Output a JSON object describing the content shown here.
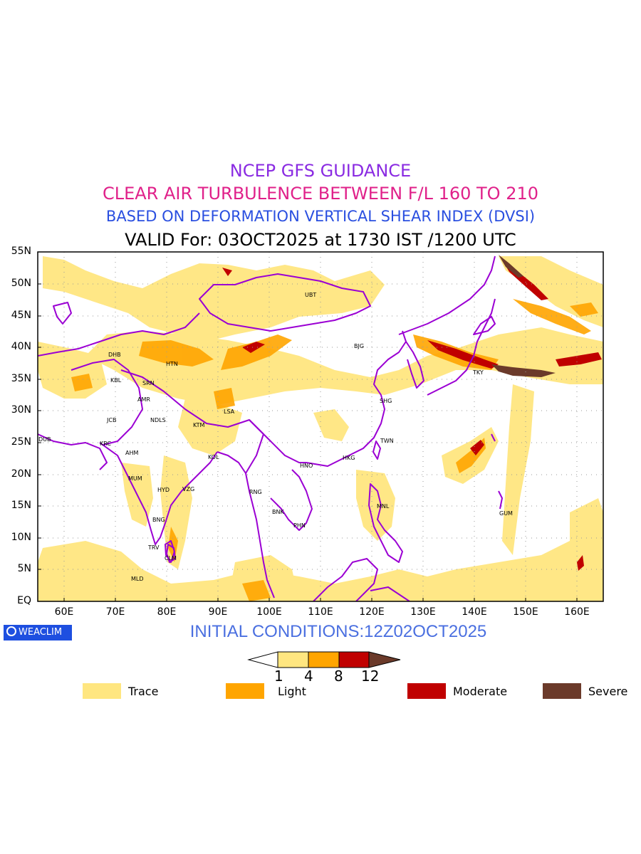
{
  "titles": {
    "line1": "NCEP GFS GUIDANCE",
    "line2": "CLEAR AIR TURBULENCE BETWEEN F/L 160 TO 210",
    "line3": "BASED ON DEFORMATION VERTICAL SHEAR INDEX (DVSI)",
    "line4": "VALID For: 03OCT2025 at 1730 IST /1200 UTC"
  },
  "lat_labels": [
    "55N",
    "50N",
    "45N",
    "40N",
    "35N",
    "30N",
    "25N",
    "20N",
    "15N",
    "10N",
    "5N",
    "EQ"
  ],
  "lon_labels": [
    "60E",
    "70E",
    "80E",
    "90E",
    "100E",
    "110E",
    "120E",
    "130E",
    "140E",
    "150E",
    "160E"
  ],
  "cities": {
    "ubt": "UBT",
    "bjg": "BJG",
    "tky": "TKY",
    "shg": "SHG",
    "twn": "TWN",
    "hkg": "HKG",
    "hno": "HNO",
    "mnl": "MNL",
    "gum": "GUM",
    "bnk": "BNK",
    "phn": "PHN",
    "rng": "RNG",
    "lsa": "LSA",
    "ktm": "KTM",
    "kol": "KOL",
    "vzg": "VZG",
    "hyd": "HYD",
    "mum": "MUM",
    "ahm": "AHM",
    "krc": "KRC",
    "dub": "DUB",
    "jcb": "JCB",
    "ndls": "NDLS",
    "amr": "AMR",
    "srn": "SRN",
    "kbl": "KBL",
    "dhb": "DHB",
    "htn": "HTN",
    "bng": "BNG",
    "clm": "CLM",
    "trv": "TRV",
    "mld": "MLD"
  },
  "logo": "WEACLIM",
  "initial_conditions": "INITIAL CONDITIONS:12Z02OCT2025",
  "colorbar": {
    "ticks": [
      "1",
      "4",
      "8",
      "12"
    ],
    "colors": [
      "#ffe680",
      "#ffa500",
      "#c00000",
      "#6b3a2a"
    ]
  },
  "legend": [
    {
      "label": "Trace",
      "color": "#ffe680"
    },
    {
      "label": "Light",
      "color": "#ffa500"
    },
    {
      "label": "Moderate",
      "color": "#c00000"
    },
    {
      "label": "Severe",
      "color": "#6b3a2a"
    }
  ],
  "colors": {
    "border": "#9b00d3",
    "title1": "#8a2be2",
    "title2": "#e0218a",
    "title3": "#2a4fe0"
  }
}
